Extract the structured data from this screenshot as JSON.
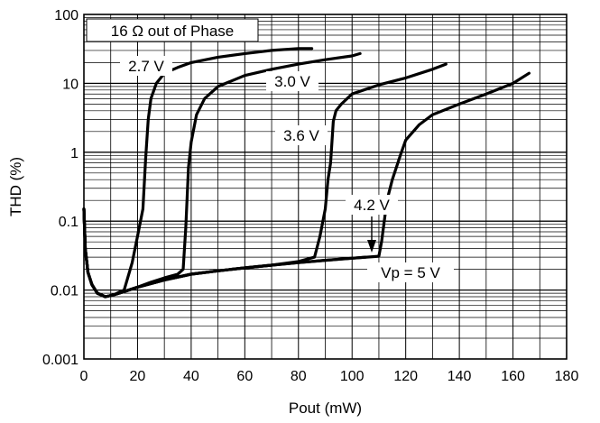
{
  "chart_data": {
    "type": "line",
    "title": "",
    "annotation_box": "16 Ω out of Phase",
    "xlabel": "Pout (mW)",
    "ylabel": "THD (%)",
    "xlim": [
      0,
      180
    ],
    "ylim": [
      0.001,
      100
    ],
    "y_scale": "log",
    "grid": true,
    "x_ticks": [
      0,
      20,
      40,
      60,
      80,
      100,
      120,
      140,
      160,
      180
    ],
    "x_tick_labels": [
      "0",
      "20",
      "40",
      "60",
      "80",
      "100",
      "120",
      "140",
      "160",
      "180"
    ],
    "y_ticks": [
      0.001,
      0.01,
      0.1,
      1,
      10,
      100
    ],
    "y_tick_labels": [
      "0.001",
      "0.01",
      "0.1",
      "1",
      "10",
      "100"
    ],
    "series": [
      {
        "name": "2.7 V",
        "x": [
          0,
          0.5,
          1.5,
          3,
          5,
          8,
          11,
          15,
          18,
          20,
          22,
          23,
          24,
          25,
          27,
          30,
          35,
          40,
          50,
          60,
          70,
          80,
          85
        ],
        "y": [
          0.15,
          0.04,
          0.018,
          0.012,
          0.009,
          0.008,
          0.0085,
          0.01,
          0.025,
          0.06,
          0.15,
          0.8,
          3,
          6,
          10,
          14,
          17,
          20,
          24,
          27,
          30,
          32,
          32
        ]
      },
      {
        "name": "3.0 V",
        "x": [
          0,
          0.5,
          1.5,
          3,
          5,
          8,
          11,
          15,
          20,
          25,
          30,
          35,
          37,
          38,
          39,
          40,
          42,
          45,
          50,
          60,
          70,
          80,
          90,
          100,
          103
        ],
        "y": [
          0.15,
          0.04,
          0.018,
          0.012,
          0.009,
          0.008,
          0.0085,
          0.0095,
          0.011,
          0.013,
          0.015,
          0.017,
          0.02,
          0.08,
          0.6,
          1.4,
          3.5,
          6,
          9,
          13,
          16,
          19,
          22,
          25,
          27
        ]
      },
      {
        "name": "3.6 V",
        "x": [
          0,
          0.5,
          1.5,
          3,
          5,
          8,
          11,
          15,
          20,
          30,
          40,
          50,
          60,
          70,
          80,
          86,
          88,
          90,
          91,
          92,
          93,
          94,
          96,
          100,
          110,
          120,
          130,
          135
        ],
        "y": [
          0.15,
          0.04,
          0.018,
          0.012,
          0.009,
          0.008,
          0.0085,
          0.0095,
          0.011,
          0.014,
          0.017,
          0.019,
          0.021,
          0.023,
          0.026,
          0.03,
          0.06,
          0.15,
          0.4,
          0.7,
          2.8,
          4,
          5,
          7,
          9.5,
          12,
          16,
          19
        ]
      },
      {
        "name": "4.2 V",
        "x": [
          0,
          0.5,
          1.5,
          3,
          5,
          8,
          11,
          15,
          20,
          30,
          40,
          50,
          60,
          70,
          80,
          90,
          100,
          110,
          111,
          112,
          113,
          115,
          118,
          120,
          125,
          130,
          140,
          150,
          160,
          166
        ],
        "y": [
          0.15,
          0.04,
          0.018,
          0.012,
          0.009,
          0.008,
          0.0085,
          0.0095,
          0.011,
          0.014,
          0.017,
          0.019,
          0.021,
          0.023,
          0.025,
          0.027,
          0.029,
          0.031,
          0.05,
          0.1,
          0.2,
          0.4,
          0.9,
          1.5,
          2.5,
          3.5,
          5,
          7,
          10,
          14
        ]
      },
      {
        "name": "Vp = 5 V",
        "x": [
          0,
          0.5,
          1.5,
          3,
          5,
          8,
          11,
          15,
          20,
          30,
          40,
          50,
          60,
          70,
          80,
          90,
          100,
          105
        ],
        "y": [
          0.15,
          0.04,
          0.018,
          0.012,
          0.009,
          0.008,
          0.0085,
          0.0095,
          0.011,
          0.014,
          0.017,
          0.019,
          0.021,
          0.023,
          0.025,
          0.027,
          0.029,
          0.03
        ]
      }
    ]
  }
}
